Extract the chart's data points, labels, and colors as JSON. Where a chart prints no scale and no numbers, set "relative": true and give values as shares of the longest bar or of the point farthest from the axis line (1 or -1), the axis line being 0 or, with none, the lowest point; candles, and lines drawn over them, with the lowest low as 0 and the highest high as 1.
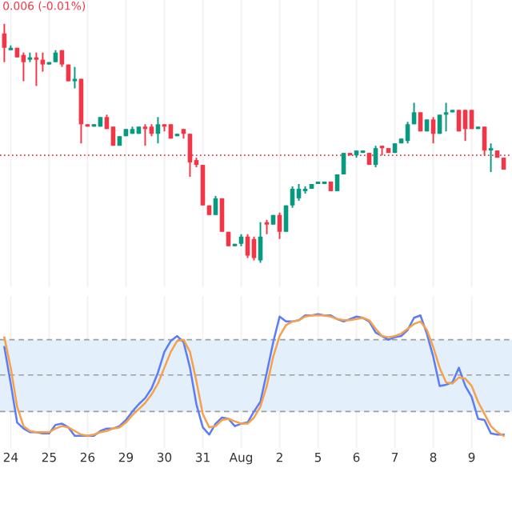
{
  "chart_data": [
    {
      "type": "candlestick",
      "relative": true,
      "tick_labels": false,
      "grid": "x",
      "annotations": [
        "0.006 (-0.01%)"
      ],
      "ref_lines": [
        {
          "axis": "y",
          "value": 0.45,
          "color": "#f23645",
          "line_style": "dotted"
        }
      ],
      "categories": [
        null,
        null,
        null,
        null,
        null,
        null,
        null,
        null,
        null,
        null,
        null,
        null,
        null,
        null,
        null,
        null,
        null,
        null,
        null,
        null,
        null,
        null,
        null,
        null,
        null,
        null,
        null,
        null,
        null,
        null,
        null,
        null,
        null,
        null,
        null,
        null,
        null,
        null,
        null,
        null,
        null,
        null,
        null,
        null,
        null,
        null,
        null,
        null,
        null,
        null,
        null,
        null,
        null,
        null,
        null,
        null,
        null,
        null,
        null,
        null,
        null,
        null,
        null,
        null,
        null,
        null,
        null,
        null,
        null,
        null,
        null,
        null,
        null,
        null,
        null,
        null,
        null,
        null,
        null
      ],
      "ohlc": [
        [
          0.96,
          1.0,
          0.84,
          0.9
        ],
        [
          0.89,
          0.91,
          0.89,
          0.9
        ],
        [
          0.9,
          0.9,
          0.86,
          0.86
        ],
        [
          0.87,
          0.88,
          0.76,
          0.84
        ],
        [
          0.85,
          0.88,
          0.84,
          0.86
        ],
        [
          0.86,
          0.88,
          0.74,
          0.85
        ],
        [
          0.85,
          0.88,
          0.8,
          0.83
        ],
        [
          0.83,
          0.84,
          0.83,
          0.84
        ],
        [
          0.84,
          0.89,
          0.84,
          0.88
        ],
        [
          0.89,
          0.89,
          0.82,
          0.83
        ],
        [
          0.83,
          0.83,
          0.76,
          0.76
        ],
        [
          0.76,
          0.82,
          0.73,
          0.77
        ],
        [
          0.77,
          0.77,
          0.5,
          0.58
        ],
        [
          0.58,
          0.58,
          0.57,
          0.57
        ],
        [
          0.57,
          0.58,
          0.57,
          0.58
        ],
        [
          0.57,
          0.61,
          0.57,
          0.61
        ],
        [
          0.61,
          0.62,
          0.56,
          0.56
        ],
        [
          0.57,
          0.57,
          0.49,
          0.49
        ],
        [
          0.49,
          0.53,
          0.49,
          0.53
        ],
        [
          0.53,
          0.56,
          0.53,
          0.56
        ],
        [
          0.54,
          0.57,
          0.54,
          0.56
        ],
        [
          0.54,
          0.57,
          0.54,
          0.57
        ],
        [
          0.57,
          0.58,
          0.49,
          0.56
        ],
        [
          0.57,
          0.58,
          0.53,
          0.54
        ],
        [
          0.54,
          0.61,
          0.5,
          0.58
        ],
        [
          0.58,
          0.58,
          0.55,
          0.57
        ],
        [
          0.58,
          0.58,
          0.52,
          0.52
        ],
        [
          0.53,
          0.54,
          0.53,
          0.54
        ],
        [
          0.56,
          0.56,
          0.52,
          0.54
        ],
        [
          0.54,
          0.54,
          0.36,
          0.42
        ],
        [
          0.43,
          0.44,
          0.4,
          0.41
        ],
        [
          0.41,
          0.41,
          0.24,
          0.24
        ],
        [
          0.24,
          0.24,
          0.2,
          0.2
        ],
        [
          0.2,
          0.28,
          0.2,
          0.27
        ],
        [
          0.27,
          0.27,
          0.13,
          0.13
        ],
        [
          0.13,
          0.13,
          0.07,
          0.07
        ],
        [
          0.07,
          0.08,
          0.07,
          0.08
        ],
        [
          0.08,
          0.12,
          0.07,
          0.11
        ],
        [
          0.11,
          0.12,
          0.02,
          0.03
        ],
        [
          0.1,
          0.11,
          0.01,
          0.02
        ],
        [
          0.01,
          0.17,
          0.0,
          0.11
        ],
        [
          0.17,
          0.18,
          0.12,
          0.16
        ],
        [
          0.16,
          0.2,
          0.16,
          0.2
        ],
        [
          0.2,
          0.21,
          0.1,
          0.13
        ],
        [
          0.13,
          0.24,
          0.13,
          0.24
        ],
        [
          0.24,
          0.32,
          0.23,
          0.31
        ],
        [
          0.27,
          0.33,
          0.26,
          0.31
        ],
        [
          0.3,
          0.32,
          0.29,
          0.31
        ],
        [
          0.31,
          0.33,
          0.31,
          0.33
        ],
        [
          0.33,
          0.34,
          0.33,
          0.34
        ],
        [
          0.33,
          0.34,
          0.33,
          0.34
        ],
        [
          0.34,
          0.34,
          0.3,
          0.3
        ],
        [
          0.3,
          0.37,
          0.3,
          0.37
        ],
        [
          0.37,
          0.46,
          0.37,
          0.46
        ],
        [
          0.46,
          0.46,
          0.45,
          0.45
        ],
        [
          0.45,
          0.47,
          0.44,
          0.47
        ],
        [
          0.46,
          0.47,
          0.46,
          0.47
        ],
        [
          0.46,
          0.46,
          0.41,
          0.41
        ],
        [
          0.41,
          0.49,
          0.4,
          0.48
        ],
        [
          0.49,
          0.49,
          0.45,
          0.48
        ],
        [
          0.48,
          0.48,
          0.46,
          0.46
        ],
        [
          0.46,
          0.5,
          0.46,
          0.5
        ],
        [
          0.5,
          0.52,
          0.5,
          0.52
        ],
        [
          0.51,
          0.59,
          0.5,
          0.58
        ],
        [
          0.58,
          0.67,
          0.58,
          0.63
        ],
        [
          0.63,
          0.63,
          0.55,
          0.55
        ],
        [
          0.55,
          0.6,
          0.55,
          0.6
        ],
        [
          0.6,
          0.61,
          0.5,
          0.54
        ],
        [
          0.54,
          0.62,
          0.54,
          0.62
        ],
        [
          0.62,
          0.67,
          0.55,
          0.63
        ],
        [
          0.63,
          0.64,
          0.63,
          0.64
        ],
        [
          0.64,
          0.64,
          0.55,
          0.55
        ],
        [
          0.64,
          0.64,
          0.51,
          0.56
        ],
        [
          0.64,
          0.64,
          0.56,
          0.56
        ],
        [
          0.56,
          0.57,
          0.56,
          0.57
        ],
        [
          0.57,
          0.57,
          0.45,
          0.47
        ],
        [
          0.47,
          0.5,
          0.38,
          0.48
        ],
        [
          0.47,
          0.47,
          0.44,
          0.44
        ],
        [
          0.44,
          0.44,
          0.39,
          0.39
        ]
      ],
      "colors": [
        "#f23645",
        "#089981",
        "#f23645",
        "#f23645",
        "#089981",
        "#f23645",
        "#f23645",
        "#089981",
        "#089981",
        "#f23645",
        "#f23645",
        "#089981",
        "#f23645",
        "#f23645",
        "#089981",
        "#089981",
        "#f23645",
        "#f23645",
        "#089981",
        "#089981",
        "#089981",
        "#089981",
        "#f23645",
        "#f23645",
        "#089981",
        "#f23645",
        "#f23645",
        "#089981",
        "#f23645",
        "#f23645",
        "#f23645",
        "#f23645",
        "#f23645",
        "#089981",
        "#f23645",
        "#f23645",
        "#089981",
        "#089981",
        "#f23645",
        "#f23645",
        "#089981",
        "#f23645",
        "#089981",
        "#f23645",
        "#089981",
        "#089981",
        "#089981",
        "#089981",
        "#089981",
        "#089981",
        "#089981",
        "#f23645",
        "#089981",
        "#089981",
        "#f23645",
        "#089981",
        "#089981",
        "#f23645",
        "#089981",
        "#f23645",
        "#f23645",
        "#089981",
        "#089981",
        "#089981",
        "#089981",
        "#f23645",
        "#089981",
        "#f23645",
        "#089981",
        "#089981",
        "#089981",
        "#f23645",
        "#f23645",
        "#f23645",
        "#089981",
        "#f23645",
        "#089981",
        "#f23645",
        "#f23645"
      ]
    },
    {
      "type": "line",
      "relative": true,
      "tick_labels": "x",
      "grid": "x",
      "categories": [
        null,
        "24",
        null,
        null,
        null,
        null,
        null,
        "25",
        null,
        null,
        null,
        null,
        null,
        "26",
        null,
        null,
        null,
        null,
        null,
        "29",
        null,
        null,
        null,
        null,
        null,
        "30",
        null,
        null,
        null,
        null,
        null,
        "31",
        null,
        null,
        null,
        null,
        null,
        "Aug",
        null,
        null,
        null,
        null,
        null,
        "2",
        null,
        null,
        null,
        null,
        null,
        "5",
        null,
        null,
        null,
        null,
        null,
        "6",
        null,
        null,
        null,
        null,
        null,
        "7",
        null,
        null,
        null,
        null,
        null,
        "8",
        null,
        null,
        null,
        null,
        null,
        "9",
        null,
        null,
        null,
        null,
        null
      ],
      "bands": [
        {
          "axis": "y",
          "from": 0.2,
          "to": 0.79,
          "color": "#e3f0fc"
        }
      ],
      "ref_lines": [
        {
          "axis": "y",
          "value": 0.2,
          "color": "#9e9e9e",
          "line_style": "dashed"
        },
        {
          "axis": "y",
          "value": 0.5,
          "color": "#9e9e9e",
          "line_style": "dashed"
        },
        {
          "axis": "y",
          "value": 0.79,
          "color": "#9e9e9e",
          "line_style": "dashed"
        }
      ],
      "series": [
        {
          "color": "#5b7cf6",
          "values": [
            0.73,
            0.43,
            0.11,
            0.06,
            0.03,
            0.03,
            0.02,
            0.02,
            0.09,
            0.1,
            0.07,
            0.0,
            0.0,
            0.0,
            0.0,
            0.04,
            0.06,
            0.06,
            0.08,
            0.13,
            0.2,
            0.26,
            0.31,
            0.39,
            0.52,
            0.69,
            0.78,
            0.82,
            0.77,
            0.56,
            0.26,
            0.07,
            0.01,
            0.1,
            0.15,
            0.14,
            0.08,
            0.1,
            0.11,
            0.2,
            0.28,
            0.52,
            0.77,
            0.98,
            0.94,
            0.94,
            0.95,
            0.99,
            0.99,
            1.0,
            0.99,
            0.99,
            0.96,
            0.94,
            0.96,
            0.98,
            0.97,
            0.94,
            0.85,
            0.82,
            0.79,
            0.81,
            0.82,
            0.87,
            0.97,
            0.99,
            0.84,
            0.65,
            0.41,
            0.42,
            0.44,
            0.56,
            0.41,
            0.32,
            0.14,
            0.13,
            0.02,
            0.01,
            0.01
          ]
        },
        {
          "color": "#f7a04b",
          "values": [
            0.81,
            0.56,
            0.24,
            0.08,
            0.04,
            0.03,
            0.03,
            0.03,
            0.06,
            0.08,
            0.07,
            0.04,
            0.01,
            0.0,
            0.01,
            0.03,
            0.04,
            0.06,
            0.07,
            0.11,
            0.17,
            0.22,
            0.27,
            0.34,
            0.43,
            0.56,
            0.69,
            0.78,
            0.79,
            0.69,
            0.45,
            0.18,
            0.07,
            0.08,
            0.13,
            0.14,
            0.12,
            0.1,
            0.1,
            0.15,
            0.24,
            0.41,
            0.65,
            0.82,
            0.91,
            0.94,
            0.95,
            0.98,
            0.99,
            0.99,
            0.99,
            0.98,
            0.96,
            0.95,
            0.95,
            0.96,
            0.97,
            0.95,
            0.88,
            0.82,
            0.81,
            0.82,
            0.84,
            0.88,
            0.92,
            0.94,
            0.87,
            0.73,
            0.56,
            0.44,
            0.43,
            0.48,
            0.47,
            0.41,
            0.28,
            0.18,
            0.08,
            0.03,
            0.0
          ]
        }
      ]
    }
  ]
}
